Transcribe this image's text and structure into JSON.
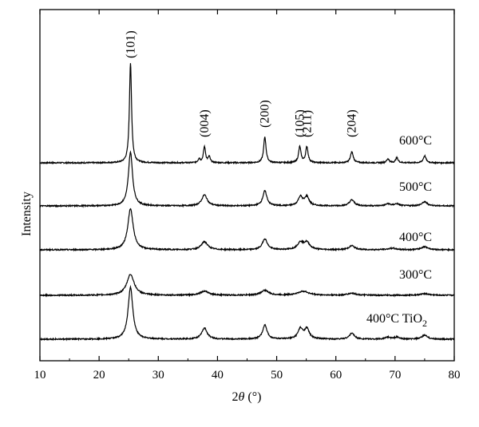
{
  "chart_data": {
    "type": "line",
    "title": "",
    "xlabel": "2θ (°)",
    "xlabel_parts": {
      "symbol": "2",
      "var": "θ",
      "unit": "(°)"
    },
    "ylabel": "Intensity",
    "xlim": [
      10,
      80
    ],
    "xticks": [
      10,
      20,
      30,
      40,
      50,
      60,
      70,
      80
    ],
    "grid": false,
    "legend": "none",
    "line_color": "#000000",
    "peak_labels": [
      {
        "text": "(101)",
        "x": 25.3
      },
      {
        "text": "(004)",
        "x": 37.8
      },
      {
        "text": "(200)",
        "x": 48.0
      },
      {
        "text": "(105)",
        "x": 53.9
      },
      {
        "text": "(211)",
        "x": 55.1
      },
      {
        "text": "(204)",
        "x": 62.7
      }
    ],
    "series": [
      {
        "name": "600°C",
        "baseline": 0.0,
        "peaks": [
          {
            "x": 25.3,
            "h": 1.0,
            "w": 0.22
          },
          {
            "x": 36.9,
            "h": 0.04,
            "w": 0.2
          },
          {
            "x": 37.8,
            "h": 0.16,
            "w": 0.22
          },
          {
            "x": 38.6,
            "h": 0.06,
            "w": 0.2
          },
          {
            "x": 48.0,
            "h": 0.26,
            "w": 0.24
          },
          {
            "x": 53.9,
            "h": 0.16,
            "w": 0.24
          },
          {
            "x": 55.1,
            "h": 0.16,
            "w": 0.24
          },
          {
            "x": 62.7,
            "h": 0.11,
            "w": 0.28
          },
          {
            "x": 68.8,
            "h": 0.04,
            "w": 0.25
          },
          {
            "x": 70.3,
            "h": 0.05,
            "w": 0.25
          },
          {
            "x": 75.0,
            "h": 0.07,
            "w": 0.28
          }
        ]
      },
      {
        "name": "500°C",
        "baseline": 0.0,
        "peaks": [
          {
            "x": 25.3,
            "h": 0.54,
            "w": 0.42
          },
          {
            "x": 37.8,
            "h": 0.11,
            "w": 0.55
          },
          {
            "x": 48.0,
            "h": 0.15,
            "w": 0.42
          },
          {
            "x": 54.0,
            "h": 0.09,
            "w": 0.45
          },
          {
            "x": 55.1,
            "h": 0.09,
            "w": 0.45
          },
          {
            "x": 62.7,
            "h": 0.06,
            "w": 0.5
          },
          {
            "x": 68.8,
            "h": 0.02,
            "w": 0.5
          },
          {
            "x": 70.3,
            "h": 0.02,
            "w": 0.5
          },
          {
            "x": 75.0,
            "h": 0.04,
            "w": 0.55
          }
        ]
      },
      {
        "name": "400°C",
        "baseline": 0.0,
        "peaks": [
          {
            "x": 25.3,
            "h": 0.41,
            "w": 0.55
          },
          {
            "x": 37.8,
            "h": 0.08,
            "w": 0.65
          },
          {
            "x": 48.0,
            "h": 0.11,
            "w": 0.5
          },
          {
            "x": 54.0,
            "h": 0.07,
            "w": 0.6
          },
          {
            "x": 55.1,
            "h": 0.07,
            "w": 0.6
          },
          {
            "x": 62.7,
            "h": 0.04,
            "w": 0.6
          },
          {
            "x": 69.5,
            "h": 0.015,
            "w": 0.8
          },
          {
            "x": 75.0,
            "h": 0.03,
            "w": 0.7
          }
        ]
      },
      {
        "name": "300°C",
        "baseline": 0.0,
        "peaks": [
          {
            "x": 25.3,
            "h": 0.21,
            "w": 0.75
          },
          {
            "x": 37.8,
            "h": 0.04,
            "w": 0.9
          },
          {
            "x": 48.0,
            "h": 0.05,
            "w": 0.75
          },
          {
            "x": 54.5,
            "h": 0.04,
            "w": 1.1
          },
          {
            "x": 62.7,
            "h": 0.02,
            "w": 0.8
          },
          {
            "x": 75.0,
            "h": 0.015,
            "w": 0.9
          }
        ]
      },
      {
        "name": "400°C TiO",
        "name_sub": "2",
        "baseline": 0.0,
        "peaks": [
          {
            "x": 25.3,
            "h": 0.52,
            "w": 0.48
          },
          {
            "x": 37.8,
            "h": 0.11,
            "w": 0.55
          },
          {
            "x": 48.0,
            "h": 0.14,
            "w": 0.45
          },
          {
            "x": 54.0,
            "h": 0.1,
            "w": 0.5
          },
          {
            "x": 55.1,
            "h": 0.1,
            "w": 0.5
          },
          {
            "x": 62.7,
            "h": 0.06,
            "w": 0.5
          },
          {
            "x": 68.8,
            "h": 0.02,
            "w": 0.5
          },
          {
            "x": 70.3,
            "h": 0.02,
            "w": 0.5
          },
          {
            "x": 75.0,
            "h": 0.04,
            "w": 0.55
          }
        ]
      }
    ]
  }
}
